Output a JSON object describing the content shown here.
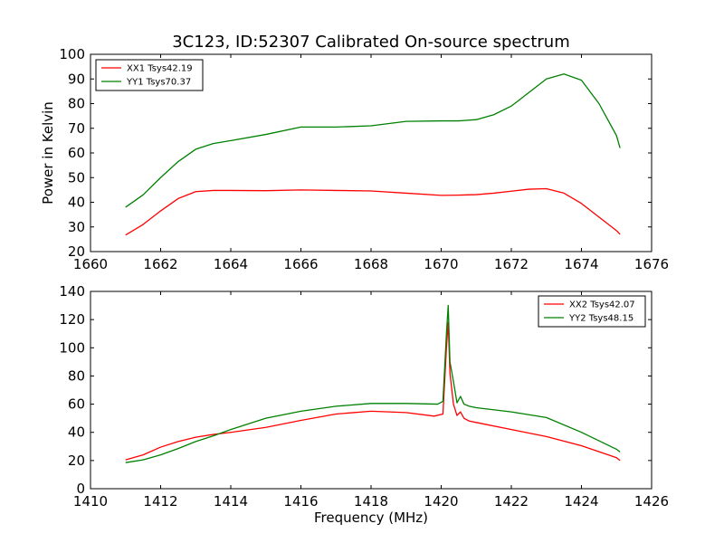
{
  "title": "3C123, ID:52307 Calibrated On-source spectrum",
  "chart_data": [
    {
      "type": "line",
      "ylabel": "Power in Kelvin",
      "xlabel": "",
      "xlim": [
        1660,
        1676
      ],
      "ylim": [
        20,
        100
      ],
      "xticks": [
        1660,
        1662,
        1664,
        1666,
        1668,
        1670,
        1672,
        1674,
        1676
      ],
      "yticks": [
        20,
        30,
        40,
        50,
        60,
        70,
        80,
        90,
        100
      ],
      "legend": "top-left",
      "series": [
        {
          "name": "XX1 Tsys42.19",
          "color": "#ff0000",
          "x": [
            1661.0,
            1661.5,
            1662.0,
            1662.5,
            1663.0,
            1663.5,
            1664.0,
            1665.0,
            1666.0,
            1667.0,
            1668.0,
            1669.0,
            1670.0,
            1670.5,
            1671.0,
            1671.5,
            1672.0,
            1672.5,
            1673.0,
            1673.5,
            1674.0,
            1674.5,
            1675.0,
            1675.1
          ],
          "y": [
            26.7,
            31.0,
            36.5,
            41.5,
            44.3,
            44.8,
            44.8,
            44.7,
            45.0,
            44.8,
            44.6,
            43.7,
            42.8,
            42.9,
            43.1,
            43.7,
            44.5,
            45.3,
            45.5,
            43.7,
            39.5,
            34.0,
            28.5,
            27.0
          ]
        },
        {
          "name": "YY1 Tsys70.37",
          "color": "#008000",
          "x": [
            1661.0,
            1661.5,
            1662.0,
            1662.5,
            1663.0,
            1663.5,
            1664.0,
            1665.0,
            1666.0,
            1667.0,
            1668.0,
            1669.0,
            1670.0,
            1670.5,
            1671.0,
            1671.5,
            1672.0,
            1672.5,
            1673.0,
            1673.5,
            1674.0,
            1674.5,
            1675.0,
            1675.1
          ],
          "y": [
            38.0,
            43.0,
            50.0,
            56.5,
            61.5,
            63.8,
            65.0,
            67.5,
            70.5,
            70.5,
            71.0,
            72.8,
            73.0,
            73.0,
            73.5,
            75.5,
            79.0,
            84.5,
            90.0,
            92.0,
            89.5,
            80.0,
            67.0,
            62.0
          ]
        }
      ]
    },
    {
      "type": "line",
      "ylabel": "",
      "xlabel": "Frequency (MHz)",
      "xlim": [
        1410,
        1426
      ],
      "ylim": [
        0,
        140
      ],
      "xticks": [
        1410,
        1412,
        1414,
        1416,
        1418,
        1420,
        1422,
        1424,
        1426
      ],
      "yticks": [
        0,
        20,
        40,
        60,
        80,
        100,
        120,
        140
      ],
      "legend": "top-right",
      "series": [
        {
          "name": "XX2 Tsys42.07",
          "color": "#ff0000",
          "x": [
            1411.0,
            1411.5,
            1412.0,
            1412.5,
            1413.0,
            1413.5,
            1414.0,
            1415.0,
            1416.0,
            1417.0,
            1418.0,
            1419.0,
            1419.8,
            1420.05,
            1420.15,
            1420.2,
            1420.25,
            1420.35,
            1420.45,
            1420.55,
            1420.65,
            1420.8,
            1421.0,
            1422.0,
            1423.0,
            1424.0,
            1425.0,
            1425.1
          ],
          "y": [
            20.5,
            24.0,
            29.5,
            33.5,
            36.5,
            38.5,
            40.0,
            43.5,
            48.5,
            53.0,
            55.0,
            54.0,
            51.5,
            53.0,
            100.0,
            118.0,
            82.0,
            60.0,
            52.0,
            54.5,
            50.0,
            48.0,
            47.0,
            42.0,
            37.0,
            30.5,
            22.0,
            20.0
          ]
        },
        {
          "name": "YY2 Tsys48.15",
          "color": "#008000",
          "x": [
            1411.0,
            1411.5,
            1412.0,
            1412.5,
            1413.0,
            1413.5,
            1414.0,
            1415.0,
            1416.0,
            1417.0,
            1418.0,
            1419.0,
            1419.9,
            1420.05,
            1420.15,
            1420.2,
            1420.25,
            1420.35,
            1420.45,
            1420.55,
            1420.65,
            1420.8,
            1421.0,
            1422.0,
            1423.0,
            1424.0,
            1425.0,
            1425.1
          ],
          "y": [
            18.5,
            20.5,
            24.0,
            28.5,
            33.5,
            37.5,
            42.0,
            50.0,
            55.0,
            58.5,
            60.5,
            60.5,
            60.0,
            62.0,
            110.0,
            130.0,
            90.0,
            76.0,
            61.0,
            65.5,
            60.0,
            58.5,
            57.5,
            54.5,
            50.5,
            40.0,
            28.0,
            26.0
          ]
        }
      ]
    }
  ]
}
